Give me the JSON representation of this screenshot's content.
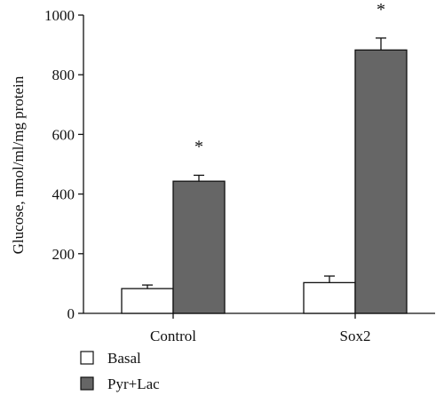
{
  "chart_data": {
    "type": "bar",
    "title": "",
    "xlabel": "",
    "ylabel": "Glucose, nmol/ml/mg protein",
    "ylim": [
      0,
      1000
    ],
    "yticks": [
      0,
      200,
      400,
      600,
      800,
      1000
    ],
    "categories": [
      "Control",
      "Sox2"
    ],
    "series": [
      {
        "name": "Basal",
        "values": [
          83,
          103
        ],
        "errors": [
          12,
          22
        ],
        "color": "#ffffff"
      },
      {
        "name": "Pyr+Lac",
        "values": [
          443,
          883
        ],
        "errors": [
          20,
          40
        ],
        "color": "#666666"
      }
    ],
    "annotations": [
      {
        "category": "Control",
        "series": "Pyr+Lac",
        "text": "*"
      },
      {
        "category": "Sox2",
        "series": "Pyr+Lac",
        "text": "*"
      }
    ],
    "legend": {
      "placement": "bottom-left"
    },
    "grid": false
  }
}
